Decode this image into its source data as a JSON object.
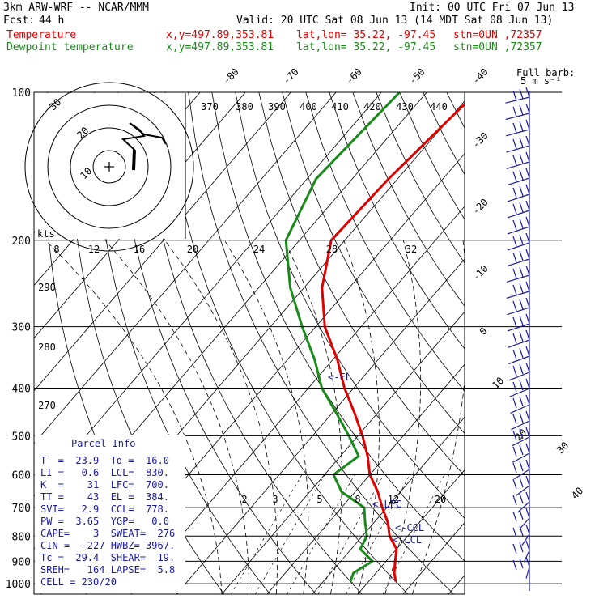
{
  "header": {
    "model": "3km ARW-WRF -- NCAR/MMM",
    "init": "Init: 00 UTC Fri 07 Jun 13",
    "fcst_label": "Fcst:",
    "fcst_value": "44 h",
    "valid": "Valid: 20 UTC Sat 08 Jun 13 (14 MDT Sat 08 Jun 13)",
    "temp_label": "Temperature",
    "dew_label": "Dewpoint temperature",
    "xy": "x,y=497.89,353.81",
    "latlon": "lat,lon= 35.22, -97.45",
    "stn": "stn=0UN ,72357"
  },
  "chart_data": {
    "type": "line",
    "title": "",
    "pressure_levels": [
      100,
      200,
      300,
      400,
      500,
      600,
      700,
      800,
      900,
      1000
    ],
    "temperature_axis_labels": [
      "-80",
      "-70",
      "-60",
      "-50",
      "-40",
      "-30",
      "-20",
      "-10",
      "0",
      "10",
      "20",
      "30",
      "40"
    ],
    "theta_labels": [
      "370",
      "380",
      "390",
      "400",
      "410",
      "420",
      "430",
      "440"
    ],
    "mixing_ratio_top": [
      "8",
      "12",
      "16",
      "20",
      "24",
      "28",
      "32"
    ],
    "mixing_ratio_bottom": [
      "2",
      "3",
      "5",
      "8",
      "12",
      "20"
    ],
    "theta_side_labels": [
      "290",
      "280",
      "270"
    ],
    "series": [
      {
        "name": "Temperature",
        "color": "#e00000",
        "points": [
          [
            100,
            -49
          ],
          [
            150,
            -52
          ],
          [
            200,
            -53
          ],
          [
            250,
            -46
          ],
          [
            300,
            -38
          ],
          [
            350,
            -29
          ],
          [
            400,
            -22
          ],
          [
            450,
            -15
          ],
          [
            500,
            -9
          ],
          [
            550,
            -4
          ],
          [
            600,
            0
          ],
          [
            650,
            5
          ],
          [
            700,
            9
          ],
          [
            750,
            13
          ],
          [
            800,
            16
          ],
          [
            850,
            20
          ],
          [
            900,
            22
          ],
          [
            950,
            24
          ],
          [
            990,
            26
          ]
        ]
      },
      {
        "name": "Dewpoint temperature",
        "color": "#1a8a1a",
        "points": [
          [
            100,
            -66
          ],
          [
            150,
            -68
          ],
          [
            200,
            -63
          ],
          [
            250,
            -53
          ],
          [
            300,
            -43
          ],
          [
            350,
            -34
          ],
          [
            400,
            -27
          ],
          [
            450,
            -19
          ],
          [
            500,
            -12
          ],
          [
            550,
            -6
          ],
          [
            600,
            -8
          ],
          [
            650,
            -3
          ],
          [
            700,
            5
          ],
          [
            750,
            8
          ],
          [
            800,
            11
          ],
          [
            850,
            12
          ],
          [
            900,
            17
          ],
          [
            950,
            15
          ],
          [
            990,
            16
          ]
        ]
      }
    ],
    "parcel_markers": [
      "<-EL",
      "<-LFC",
      "<-CCL",
      "<-LCL"
    ],
    "hodograph_labels": [
      "kts",
      "10",
      "20",
      "30"
    ],
    "barb_label": "Full barb:",
    "barb_unit": "5 m s⁻¹"
  },
  "parcel_info": {
    "title": "Parcel Info",
    "rows": [
      "T  =  23.9  Td =  16.0",
      "LI =   0.6  LCL=  830.",
      "K  =    31  LFC=  700.",
      "TT =    43  EL =  384.",
      "SVI=   2.9  CCL=  778.",
      "PW =  3.65  YGP=   0.0",
      "CAPE=    3  SWEAT=  276",
      "CIN =  -227 HWBZ= 3967.",
      "Tc =  29.4  SHEAR=  19.",
      "SREH=   164 LAPSE=  5.8",
      "CELL = 230/20"
    ]
  },
  "colors": {
    "temperature": "#e00000",
    "dewpoint": "#1a8a1a",
    "barb": "#1a1aa0"
  }
}
